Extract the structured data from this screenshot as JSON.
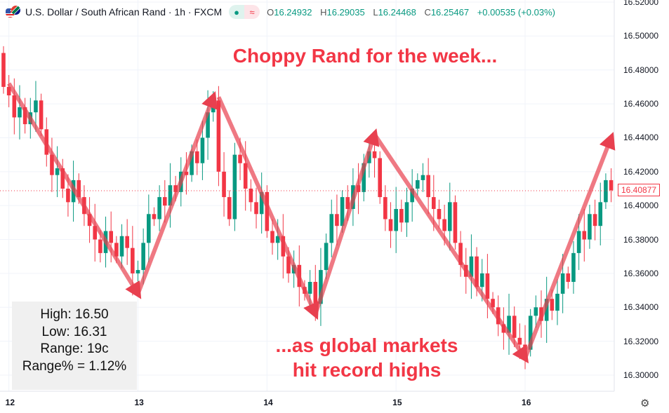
{
  "header": {
    "title": "U.S. Dollar / South African Rand · 1h · FXCM",
    "open_label": "O",
    "open": "16.24932",
    "high_label": "H",
    "high": "16.29035",
    "low_label": "L",
    "low": "16.24468",
    "close_label": "C",
    "close": "16.25467",
    "change": "+0.00535 (+0.03%)",
    "icons": [
      "usd-zar-flag-icon",
      "market-open-dot-icon",
      "wave-icon"
    ]
  },
  "price_label": "16.40877",
  "stats": [
    "High: 16.50",
    "Low: 16.31",
    "Range: 19c",
    "Range% = 1.12%"
  ],
  "annotations": {
    "top": "Choppy Rand for the week...",
    "bottom_1": "...as global markets",
    "bottom_2": "hit record highs"
  },
  "colors": {
    "up": "#089981",
    "down": "#f23645",
    "arrow": "#e8404f",
    "annotation": "#f23645"
  },
  "chart_data": {
    "type": "candlestick",
    "title": "U.S. Dollar / South African Rand · 1h · FXCM",
    "y_ticks": [
      "16.52000",
      "16.50000",
      "16.48000",
      "16.46000",
      "16.44000",
      "16.42000",
      "16.40000",
      "16.38000",
      "16.36000",
      "16.34000",
      "16.32000",
      "16.30000"
    ],
    "ylim": [
      16.2925,
      16.5235
    ],
    "x_ticks": [
      {
        "label": "12",
        "index": 1
      },
      {
        "label": "13",
        "index": 25
      },
      {
        "label": "14",
        "index": 49
      },
      {
        "label": "15",
        "index": 73
      },
      {
        "label": "16",
        "index": 97
      }
    ],
    "first_open": 16.49,
    "wick": 0.004,
    "closes": [
      16.47,
      16.465,
      16.452,
      16.458,
      16.448,
      16.455,
      16.462,
      16.445,
      16.43,
      16.418,
      16.422,
      16.41,
      16.402,
      16.415,
      16.405,
      16.395,
      16.388,
      16.38,
      16.372,
      16.385,
      16.378,
      16.37,
      16.382,
      16.375,
      16.36,
      16.362,
      16.378,
      16.395,
      16.392,
      16.405,
      16.4,
      16.412,
      16.408,
      16.42,
      16.418,
      16.432,
      16.425,
      16.44,
      16.455,
      16.462,
      16.42,
      16.405,
      16.392,
      16.43,
      16.425,
      16.41,
      16.402,
      16.395,
      16.408,
      16.385,
      16.378,
      16.382,
      16.37,
      16.36,
      16.365,
      16.352,
      16.348,
      16.355,
      16.342,
      16.362,
      16.378,
      16.395,
      16.388,
      16.405,
      16.398,
      16.412,
      16.408,
      16.425,
      16.432,
      16.428,
      16.405,
      16.392,
      16.385,
      16.398,
      16.39,
      16.402,
      16.41,
      16.415,
      16.418,
      16.405,
      16.398,
      16.392,
      16.385,
      16.402,
      16.378,
      16.365,
      16.358,
      16.37,
      16.352,
      16.36,
      16.345,
      16.34,
      16.33,
      16.325,
      16.335,
      16.322,
      16.318,
      16.315,
      16.335,
      16.34,
      16.332,
      16.345,
      16.338,
      16.348,
      16.36,
      16.355,
      16.372,
      16.385,
      16.38,
      16.395,
      16.388,
      16.402,
      16.415,
      16.409
    ],
    "trend_arrows": [
      [
        [
          1,
          16.472
        ],
        [
          25,
          16.348
        ]
      ],
      [
        [
          25,
          16.348
        ],
        [
          39,
          16.464
        ]
      ],
      [
        [
          40,
          16.464
        ],
        [
          58,
          16.336
        ]
      ],
      [
        [
          58,
          16.336
        ],
        [
          69,
          16.442
        ]
      ],
      [
        [
          69,
          16.442
        ],
        [
          97,
          16.31
        ]
      ],
      [
        [
          97,
          16.31
        ],
        [
          113,
          16.44
        ]
      ]
    ]
  }
}
